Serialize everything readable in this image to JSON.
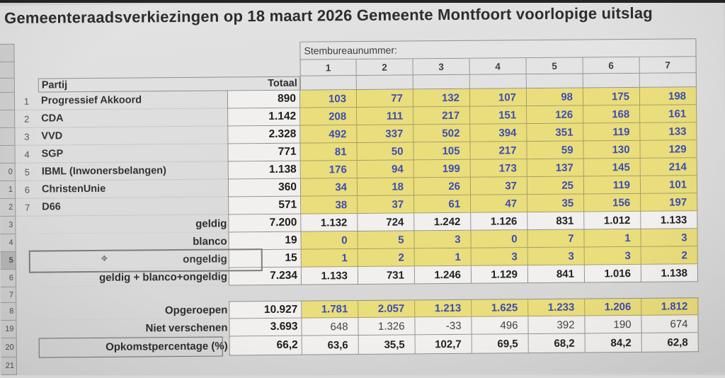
{
  "sheet": {
    "title": "Gemeenteraadsverkiezingen op 18 maart 2026 Gemeente Montfoort voorlopige uitslag",
    "station_header": "Stembureaunummer:",
    "station_numbers": [
      "1",
      "2",
      "3",
      "4",
      "5",
      "6",
      "7"
    ],
    "partij_label": "Partij",
    "totaal_label": "Totaal",
    "parties": [
      {
        "num": "1",
        "name": "Progressief Akkoord",
        "totaal": "890",
        "values": [
          "103",
          "77",
          "132",
          "107",
          "98",
          "175",
          "198"
        ]
      },
      {
        "num": "2",
        "name": "CDA",
        "totaal": "1.142",
        "values": [
          "208",
          "111",
          "217",
          "151",
          "126",
          "168",
          "161"
        ]
      },
      {
        "num": "3",
        "name": "VVD",
        "totaal": "2.328",
        "values": [
          "492",
          "337",
          "502",
          "394",
          "351",
          "119",
          "133"
        ]
      },
      {
        "num": "4",
        "name": "SGP",
        "totaal": "771",
        "values": [
          "81",
          "50",
          "105",
          "217",
          "59",
          "130",
          "129"
        ]
      },
      {
        "num": "5",
        "name": "IBML (Inwonersbelangen)",
        "totaal": "1.138",
        "values": [
          "176",
          "94",
          "199",
          "173",
          "137",
          "145",
          "214"
        ]
      },
      {
        "num": "6",
        "name": "ChristenUnie",
        "totaal": "360",
        "values": [
          "34",
          "18",
          "26",
          "37",
          "25",
          "119",
          "101"
        ]
      },
      {
        "num": "7",
        "name": "D66",
        "totaal": "571",
        "values": [
          "38",
          "37",
          "61",
          "47",
          "35",
          "156",
          "197"
        ]
      }
    ],
    "summary_rows": [
      {
        "label": "geldig",
        "totaal": "7.200",
        "values": [
          "1.132",
          "724",
          "1.242",
          "1.126",
          "831",
          "1.012",
          "1.133"
        ],
        "style": "white"
      },
      {
        "label": "blanco",
        "totaal": "19",
        "values": [
          "0",
          "5",
          "3",
          "0",
          "7",
          "1",
          "3"
        ],
        "style": "yellow"
      },
      {
        "label": "ongeldig",
        "totaal": "15",
        "values": [
          "1",
          "2",
          "1",
          "3",
          "3",
          "3",
          "2"
        ],
        "style": "yellow",
        "selected": true
      },
      {
        "label": "geldig + blanco+ongeldig",
        "totaal": "7.234",
        "values": [
          "1.133",
          "731",
          "1.246",
          "1.129",
          "841",
          "1.016",
          "1.138"
        ],
        "style": "white"
      }
    ],
    "turnout_rows": [
      {
        "label": "Opgeroepen",
        "totaal": "10.927",
        "values": [
          "1.781",
          "2.057",
          "1.213",
          "1.625",
          "1.233",
          "1.206",
          "1.812"
        ],
        "style": "yellow"
      },
      {
        "label": "Niet verschenen",
        "totaal": "3.693",
        "values": [
          "648",
          "1.326",
          "-33",
          "496",
          "392",
          "190",
          "674"
        ],
        "style": "white-plain"
      },
      {
        "label": "Opkomstpercentage (%)",
        "totaal": "66,2",
        "values": [
          "63,6",
          "35,5",
          "102,7",
          "69,5",
          "68,2",
          "84,2",
          "62,8"
        ],
        "style": "white",
        "boxed": true
      }
    ],
    "row_header_strip": {
      "visible_numbers": [
        "",
        "",
        "",
        "",
        "",
        "",
        "",
        "0",
        "1",
        "2",
        "3",
        "4",
        "5",
        "6",
        "7",
        "8",
        "19",
        "20",
        "21"
      ],
      "selected_index": 12
    },
    "icons": {
      "move_cursor": "✥"
    },
    "colors": {
      "cell_yellow": "#eadd7c",
      "value_blue": "#3b4eb3",
      "triangle_green": "#2e7d43",
      "white_cell": "#f1f0ee"
    }
  }
}
